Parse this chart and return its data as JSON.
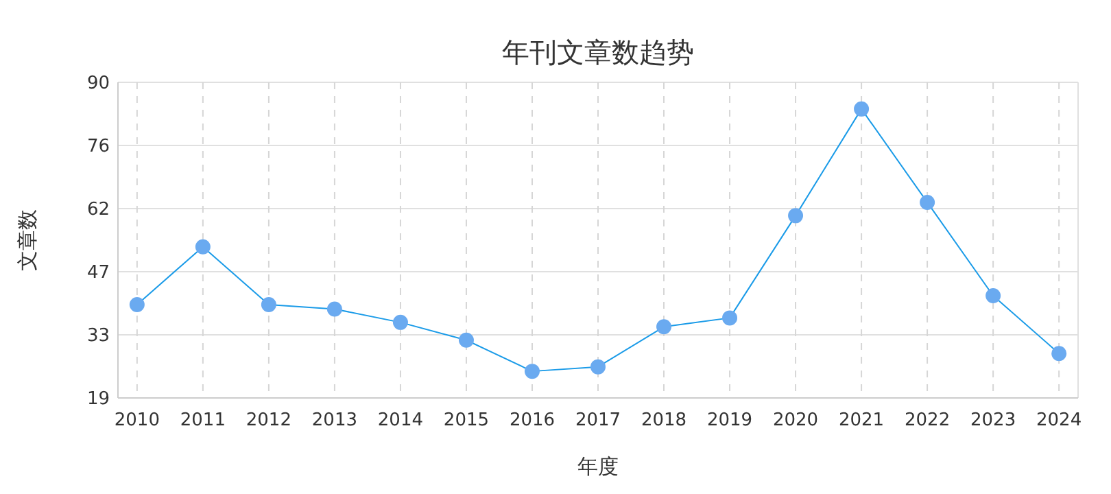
{
  "chart_data": {
    "type": "line",
    "title": "年刊文章数趋势",
    "xlabel": "年度",
    "ylabel": "文章数",
    "categories": [
      "2010",
      "2011",
      "2012",
      "2013",
      "2014",
      "2015",
      "2016",
      "2017",
      "2018",
      "2019",
      "2020",
      "2021",
      "2022",
      "2023",
      "2024"
    ],
    "series": [
      {
        "color": "#1a9be8",
        "values": [
          40,
          53,
          40,
          39,
          36,
          32,
          25,
          26,
          35,
          37,
          60,
          84,
          63,
          42,
          29
        ]
      }
    ],
    "ylim": [
      19,
      90
    ],
    "yticks": [
      19,
      {
        "value": 33.2,
        "label": "33"
      },
      {
        "value": 47.4,
        "label": "47"
      },
      {
        "value": 61.6,
        "label": "62"
      },
      {
        "value": 75.8,
        "label": "76"
      },
      90
    ],
    "grid": true,
    "marker": "circle",
    "line_style": "solid"
  }
}
